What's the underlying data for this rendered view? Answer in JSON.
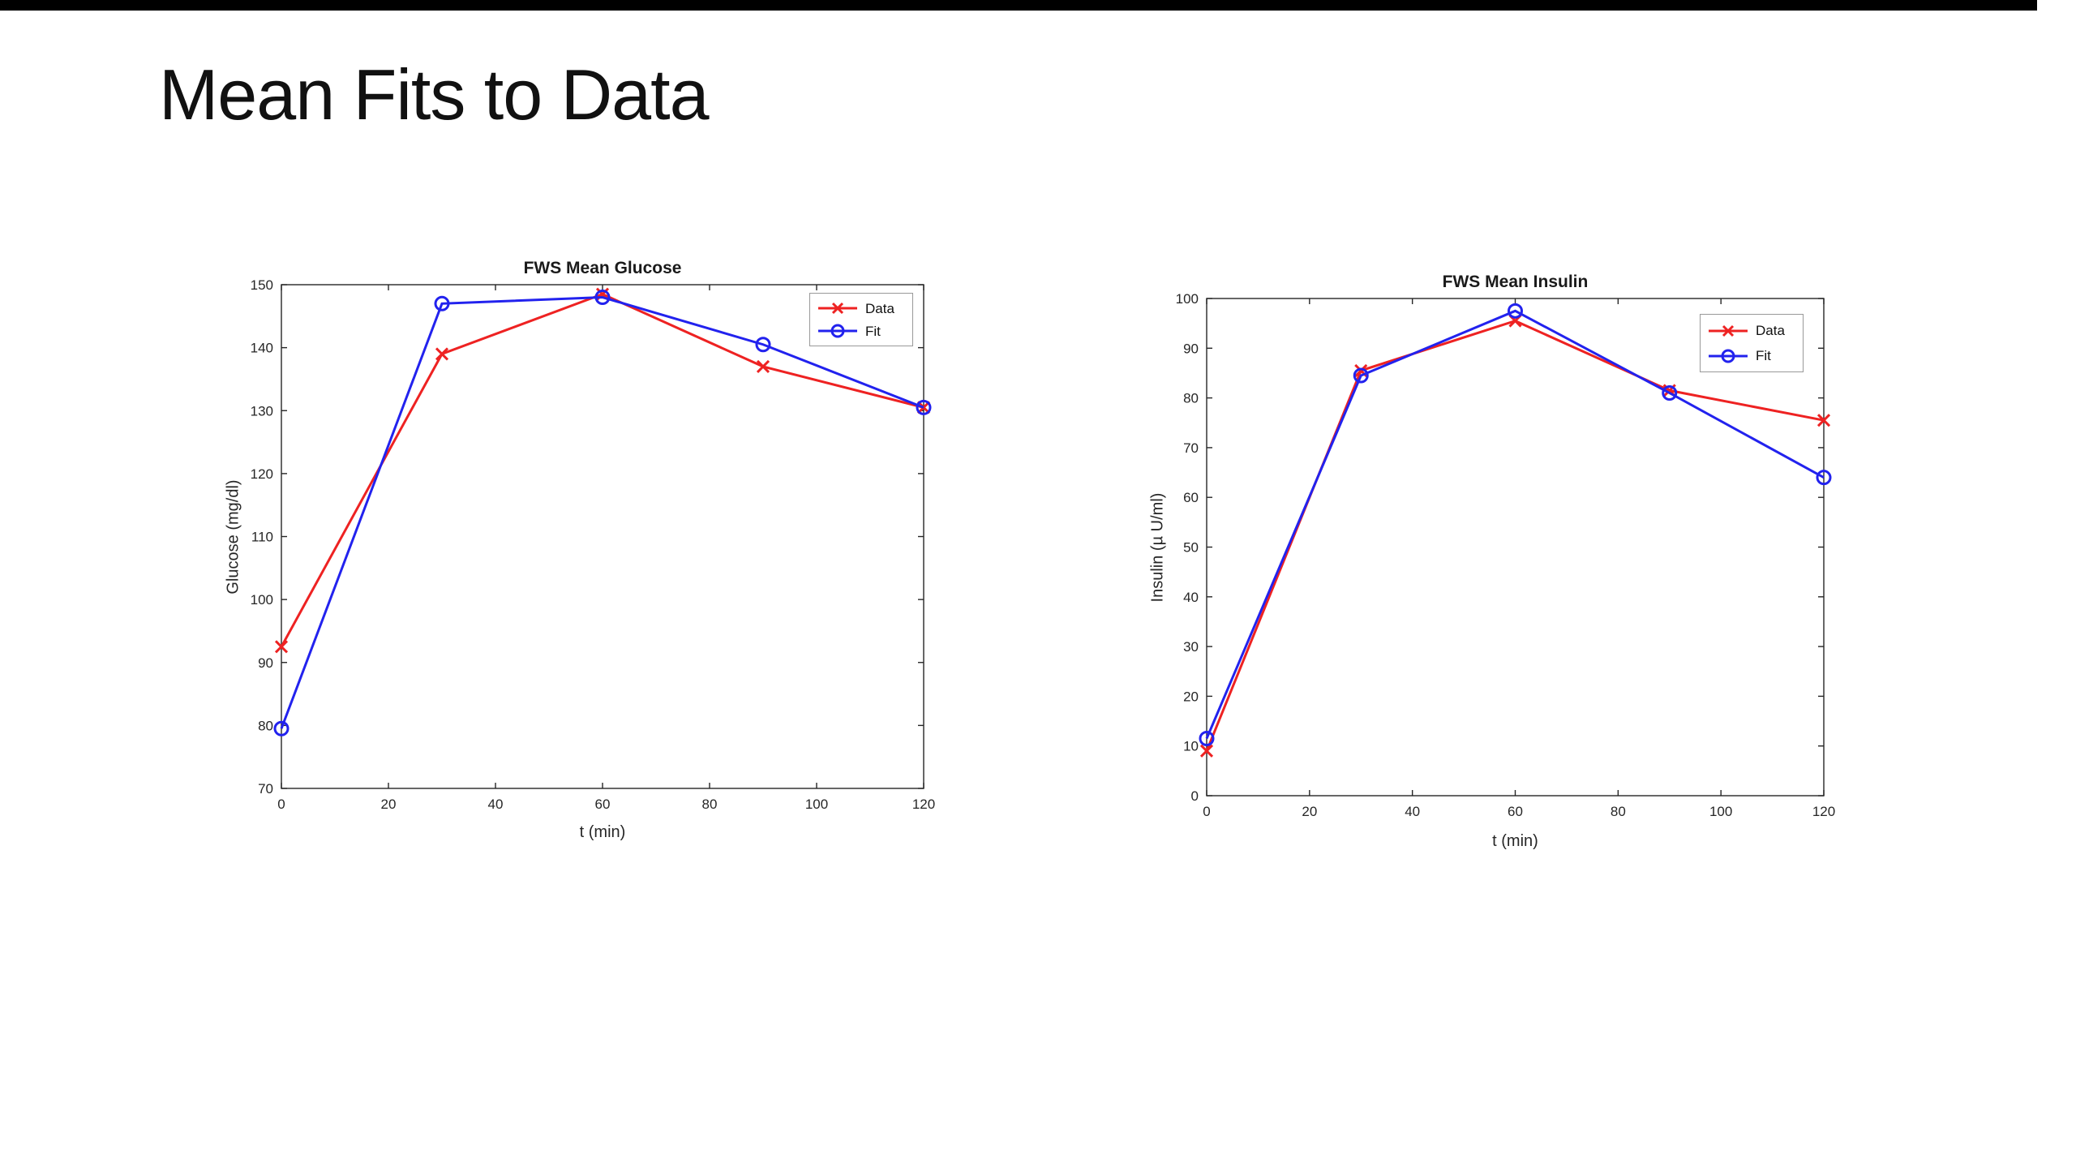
{
  "page": {
    "title": "Mean Fits to Data"
  },
  "colors": {
    "data_series": "#ee2222",
    "fit_series": "#2222ee",
    "axis": "#262626",
    "legend_border": "#999999",
    "background": "#ffffff",
    "top_bar": "#000000"
  },
  "charts": [
    {
      "id": "glucose",
      "title": "FWS Mean Glucose",
      "xlabel": "t (min)",
      "ylabel": "Glucose (mg/dl)",
      "xlim": [
        0,
        120
      ],
      "ylim": [
        70,
        150
      ],
      "xticks": [
        0,
        20,
        40,
        60,
        80,
        100,
        120
      ],
      "yticks": [
        70,
        80,
        90,
        100,
        110,
        120,
        130,
        140,
        150
      ],
      "x": [
        0,
        30,
        60,
        90,
        120
      ],
      "series": [
        {
          "name": "Data",
          "marker": "x",
          "color": "#ee2222",
          "values": [
            92.5,
            139,
            148.5,
            137,
            130.5
          ]
        },
        {
          "name": "Fit",
          "marker": "o",
          "color": "#2222ee",
          "values": [
            79.5,
            147,
            148,
            140.5,
            130.5
          ]
        }
      ],
      "legend_position": "northeast"
    },
    {
      "id": "insulin",
      "title": "FWS Mean Insulin",
      "xlabel": "t (min)",
      "ylabel": "Insulin (µ U/ml)",
      "xlim": [
        0,
        120
      ],
      "ylim": [
        0,
        100
      ],
      "xticks": [
        0,
        20,
        40,
        60,
        80,
        100,
        120
      ],
      "yticks": [
        0,
        10,
        20,
        30,
        40,
        50,
        60,
        70,
        80,
        90,
        100
      ],
      "x": [
        0,
        30,
        60,
        90,
        120
      ],
      "series": [
        {
          "name": "Data",
          "marker": "x",
          "color": "#ee2222",
          "values": [
            9,
            85.5,
            95.5,
            81.5,
            75.5
          ]
        },
        {
          "name": "Fit",
          "marker": "o",
          "color": "#2222ee",
          "values": [
            11.5,
            84.5,
            97.5,
            81,
            64
          ]
        }
      ],
      "legend_position": "northeast"
    }
  ],
  "chart_data": [
    {
      "type": "line",
      "title": "FWS Mean Glucose",
      "xlabel": "t (min)",
      "ylabel": "Glucose (mg/dl)",
      "x": [
        0,
        30,
        60,
        90,
        120
      ],
      "series": [
        {
          "name": "Data",
          "values": [
            92.5,
            139,
            148.5,
            137,
            130.5
          ]
        },
        {
          "name": "Fit",
          "values": [
            79.5,
            147,
            148,
            140.5,
            130.5
          ]
        }
      ],
      "xlim": [
        0,
        120
      ],
      "ylim": [
        70,
        150
      ],
      "grid": false,
      "legend_position": "northeast"
    },
    {
      "type": "line",
      "title": "FWS Mean Insulin",
      "xlabel": "t (min)",
      "ylabel": "Insulin (µ U/ml)",
      "x": [
        0,
        30,
        60,
        90,
        120
      ],
      "series": [
        {
          "name": "Data",
          "values": [
            9,
            85.5,
            95.5,
            81.5,
            75.5
          ]
        },
        {
          "name": "Fit",
          "values": [
            11.5,
            84.5,
            97.5,
            81,
            64
          ]
        }
      ],
      "xlim": [
        0,
        120
      ],
      "ylim": [
        0,
        100
      ],
      "grid": false,
      "legend_position": "northeast"
    }
  ]
}
